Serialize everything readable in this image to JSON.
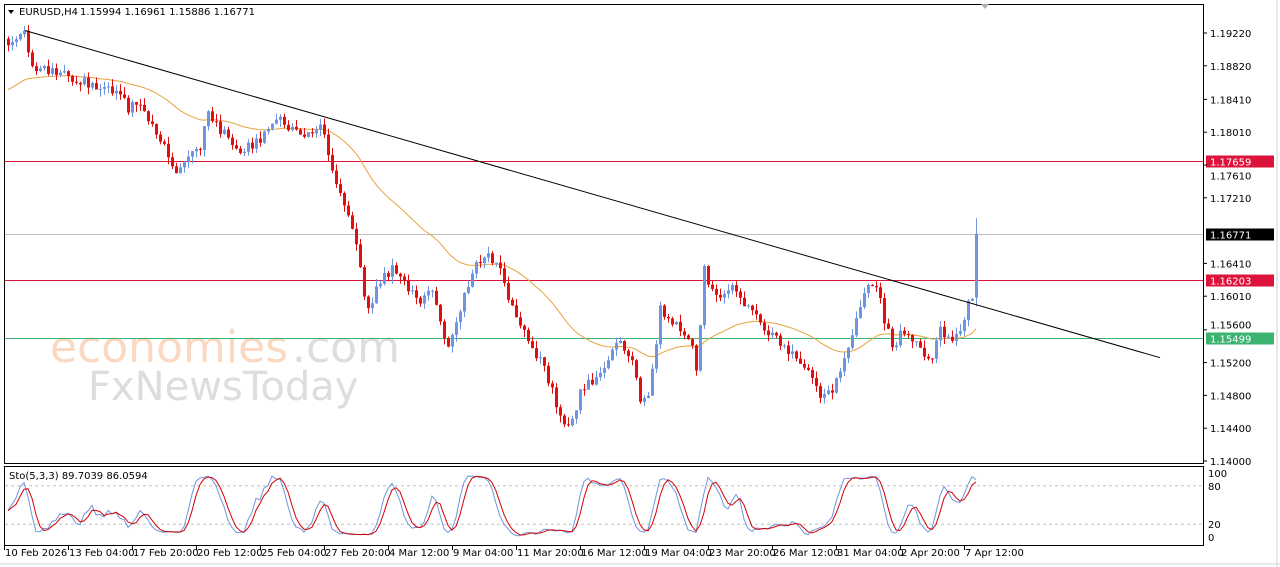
{
  "header": {
    "symbol": "EURUSD,H4",
    "ohlc": "1.15994 1.16961 1.15886 1.16771"
  },
  "watermark": {
    "part1": "economies",
    "part2": ".com",
    "line2": "FxNewsToday"
  },
  "chart_data": {
    "type": "candlestick",
    "title": "EURUSD,H4",
    "ylim": [
      1.14,
      1.196
    ],
    "yticks": [
      "1.19220",
      "1.18820",
      "1.18410",
      "1.18010",
      "1.17610",
      "1.17210",
      "1.16410",
      "1.16010",
      "1.15600",
      "1.15200",
      "1.14800",
      "1.14400",
      "1.14000"
    ],
    "x_labels": [
      "10 Feb 2026",
      "13 Feb 04:00",
      "17 Feb 20:00",
      "20 Feb 12:00",
      "25 Feb 04:00",
      "27 Feb 20:00",
      "4 Mar 12:00",
      "9 Mar 04:00",
      "11 Mar 20:00",
      "16 Mar 12:00",
      "19 Mar 04:00",
      "23 Mar 20:00",
      "26 Mar 12:00",
      "31 Mar 04:00",
      "2 Apr 20:00",
      "7 Apr 12:00"
    ],
    "bars_per_label": 16,
    "close_waypoints": [
      [
        0,
        1.1907
      ],
      [
        4,
        1.192
      ],
      [
        6,
        1.1877
      ],
      [
        8,
        1.1877
      ],
      [
        13,
        1.1871
      ],
      [
        18,
        1.1865
      ],
      [
        23,
        1.1855
      ],
      [
        28,
        1.1846
      ],
      [
        30,
        1.1828
      ],
      [
        33,
        1.184
      ],
      [
        35,
        1.1816
      ],
      [
        38,
        1.1792
      ],
      [
        42,
        1.1755
      ],
      [
        44,
        1.1767
      ],
      [
        48,
        1.1779
      ],
      [
        50,
        1.1828
      ],
      [
        53,
        1.1804
      ],
      [
        58,
        1.1779
      ],
      [
        63,
        1.1792
      ],
      [
        68,
        1.1816
      ],
      [
        73,
        1.1798
      ],
      [
        78,
        1.181
      ],
      [
        80,
        1.1779
      ],
      [
        82,
        1.1737
      ],
      [
        84,
        1.1706
      ],
      [
        87,
        1.167
      ],
      [
        89,
        1.1596
      ],
      [
        90,
        1.1584
      ],
      [
        93,
        1.1621
      ],
      [
        96,
        1.1633
      ],
      [
        98,
        1.1627
      ],
      [
        100,
        1.1609
      ],
      [
        103,
        1.1596
      ],
      [
        106,
        1.1609
      ],
      [
        108,
        1.1572
      ],
      [
        110,
        1.1535
      ],
      [
        113,
        1.1584
      ],
      [
        116,
        1.1633
      ],
      [
        118,
        1.1645
      ],
      [
        120,
        1.1651
      ],
      [
        123,
        1.1633
      ],
      [
        125,
        1.1596
      ],
      [
        128,
        1.156
      ],
      [
        130,
        1.1548
      ],
      [
        133,
        1.1523
      ],
      [
        135,
        1.1499
      ],
      [
        138,
        1.1456
      ],
      [
        140,
        1.1438
      ],
      [
        142,
        1.1462
      ],
      [
        143,
        1.1487
      ],
      [
        146,
        1.1499
      ],
      [
        148,
        1.1511
      ],
      [
        151,
        1.1535
      ],
      [
        153,
        1.1541
      ],
      [
        156,
        1.1523
      ],
      [
        158,
        1.1474
      ],
      [
        160,
        1.148
      ],
      [
        162,
        1.1541
      ],
      [
        163,
        1.1584
      ],
      [
        166,
        1.1572
      ],
      [
        168,
        1.156
      ],
      [
        171,
        1.1541
      ],
      [
        172,
        1.1505
      ],
      [
        174,
        1.1633
      ],
      [
        176,
        1.1609
      ],
      [
        178,
        1.1596
      ],
      [
        181,
        1.1609
      ],
      [
        183,
        1.1596
      ],
      [
        186,
        1.1584
      ],
      [
        188,
        1.1566
      ],
      [
        191,
        1.1553
      ],
      [
        193,
        1.1541
      ],
      [
        196,
        1.1529
      ],
      [
        198,
        1.1523
      ],
      [
        201,
        1.1499
      ],
      [
        203,
        1.148
      ],
      [
        206,
        1.1487
      ],
      [
        210,
        1.1541
      ],
      [
        212,
        1.1572
      ],
      [
        214,
        1.1609
      ],
      [
        217,
        1.1615
      ],
      [
        219,
        1.1572
      ],
      [
        221,
        1.1541
      ],
      [
        223,
        1.1553
      ],
      [
        226,
        1.1548
      ],
      [
        228,
        1.1535
      ],
      [
        231,
        1.1523
      ],
      [
        233,
        1.156
      ],
      [
        236,
        1.1548
      ],
      [
        238,
        1.156
      ],
      [
        240,
        1.159
      ],
      [
        241,
        1.1599
      ]
    ],
    "last_bar": {
      "open": 1.15994,
      "high": 1.16961,
      "low": 1.15886,
      "close": 1.16771
    },
    "moving_average": {
      "color": "#e8a33c"
    },
    "trendline": {
      "points": [
        [
          4.25,
          1.1925
        ],
        [
          288,
          1.1526
        ]
      ],
      "color": "#000000"
    },
    "levels": [
      {
        "price": "1.17659",
        "color": "#dc143c"
      },
      {
        "price": "1.16203",
        "color": "#dc143c"
      },
      {
        "price": "1.15499",
        "color": "#3cb371"
      },
      {
        "price": "1.16771",
        "color": "#000000",
        "line_color": "#c0c0c0"
      }
    ],
    "colors": {
      "bull": "#6f95e0",
      "bear": "#e01010"
    },
    "stochastic": {
      "label": "Sto(5,3,3) 89.7039 86.0594",
      "params": [
        5,
        3,
        3
      ],
      "main": 89.7039,
      "signal": 86.0594,
      "levels": [
        80,
        20
      ],
      "ticks": [
        "100",
        "80",
        "20",
        "0"
      ],
      "main_color": "#6f95e0",
      "signal_color": "#d40000"
    }
  }
}
